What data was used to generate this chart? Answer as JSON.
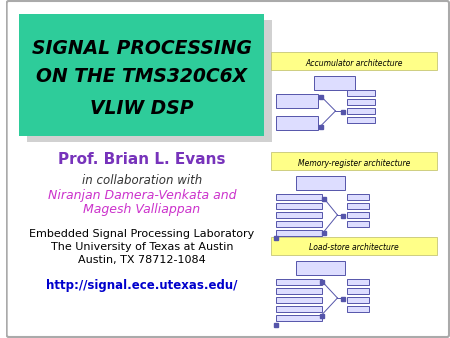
{
  "title_lines": [
    "SIGNAL PROCESSING",
    "ON THE TMS320C6X",
    "VLIW DSP"
  ],
  "title_bg_color": "#2ECC9A",
  "title_text_color": "#000000",
  "slide_bg_color": "#FFFFFF",
  "prof_name": "Prof. Brian L. Evans",
  "prof_color": "#7733BB",
  "collab_text": "in collaboration with",
  "collab_color": "#333333",
  "names_text_1": "Niranjan Damera-Venkata and",
  "names_text_2": "Magesh Valliappan",
  "names_color": "#CC33CC",
  "org_line1": "Embedded Signal Processing Laboratory",
  "org_line2": "The University of Texas at Austin",
  "org_line3": "Austin, TX 78712-1084",
  "org_color": "#000000",
  "url_text": "http://signal.ece.utexas.edu/",
  "url_color": "#0000CC",
  "arch_labels": [
    "Accumulator architecture",
    "Memory-register architecture",
    "Load-store architecture"
  ],
  "arch_label_bg": "#FFFF88",
  "arch_label_color": "#000000",
  "diagram_color": "#5555AA",
  "diagram_fill": "#DDDDFF",
  "shadow_color": "#999999",
  "border_color": "#AAAAAA"
}
